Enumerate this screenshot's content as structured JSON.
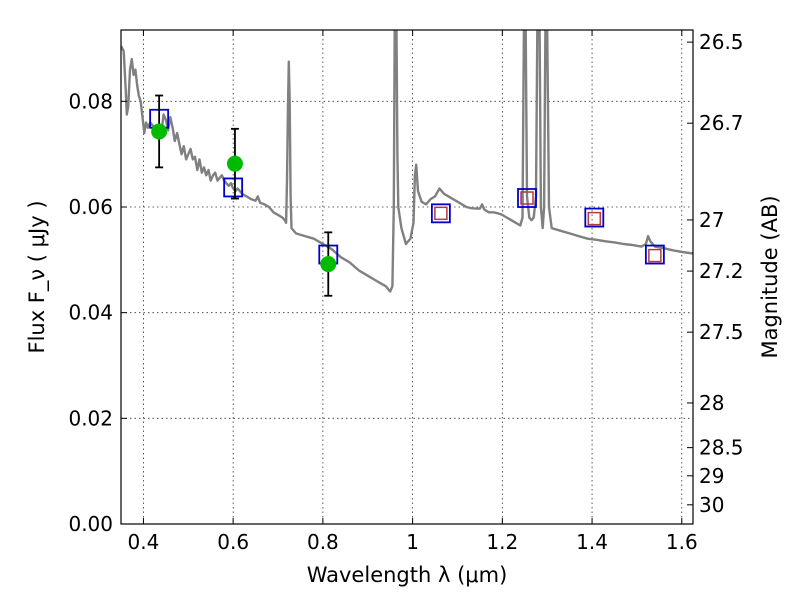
{
  "chart_data": {
    "type": "scatter",
    "xlabel": "Wavelength  λ (μm)",
    "ylabel": "Flux  F_ν  ( μJy )",
    "y2label": "Magnitude (AB)",
    "xlim": [
      0.35,
      1.625
    ],
    "ylim": [
      0.0,
      0.0935
    ],
    "grid": true,
    "xticks": [
      {
        "v": 0.4,
        "label": "0.4"
      },
      {
        "v": 0.6,
        "label": "0.6"
      },
      {
        "v": 0.8,
        "label": "0.8"
      },
      {
        "v": 1.0,
        "label": "1"
      },
      {
        "v": 1.2,
        "label": "1.2"
      },
      {
        "v": 1.4,
        "label": "1.4"
      },
      {
        "v": 1.6,
        "label": "1.6"
      }
    ],
    "yticks": [
      {
        "v": 0.0,
        "label": "0.00"
      },
      {
        "v": 0.02,
        "label": "0.02"
      },
      {
        "v": 0.04,
        "label": "0.04"
      },
      {
        "v": 0.06,
        "label": "0.06"
      },
      {
        "v": 0.08,
        "label": "0.08"
      }
    ],
    "magticks": [
      {
        "v": 26.5,
        "label": "26.5"
      },
      {
        "v": 26.7,
        "label": "26.7"
      },
      {
        "v": 27.0,
        "label": "27"
      },
      {
        "v": 27.2,
        "label": "27.2"
      },
      {
        "v": 27.5,
        "label": "27.5"
      },
      {
        "v": 28.0,
        "label": "28"
      },
      {
        "v": 28.5,
        "label": "28.5"
      },
      {
        "v": 29.0,
        "label": "29"
      },
      {
        "v": 30.0,
        "label": "30"
      }
    ],
    "series": [
      {
        "kind": "line",
        "color": "#808080",
        "points": [
          [
            0.35,
            0.0905
          ],
          [
            0.356,
            0.0895
          ],
          [
            0.36,
            0.083
          ],
          [
            0.363,
            0.0775
          ],
          [
            0.366,
            0.079
          ],
          [
            0.37,
            0.086
          ],
          [
            0.374,
            0.088
          ],
          [
            0.378,
            0.085
          ],
          [
            0.382,
            0.086
          ],
          [
            0.386,
            0.083
          ],
          [
            0.39,
            0.081
          ],
          [
            0.394,
            0.08
          ],
          [
            0.398,
            0.077
          ],
          [
            0.402,
            0.074
          ],
          [
            0.406,
            0.076
          ],
          [
            0.41,
            0.075
          ],
          [
            0.415,
            0.076
          ],
          [
            0.42,
            0.0755
          ],
          [
            0.425,
            0.075
          ],
          [
            0.43,
            0.0735
          ],
          [
            0.435,
            0.0755
          ],
          [
            0.44,
            0.074
          ],
          [
            0.445,
            0.0775
          ],
          [
            0.45,
            0.0765
          ],
          [
            0.455,
            0.0745
          ],
          [
            0.46,
            0.077
          ],
          [
            0.465,
            0.075
          ],
          [
            0.47,
            0.0725
          ],
          [
            0.475,
            0.074
          ],
          [
            0.48,
            0.072
          ],
          [
            0.485,
            0.07
          ],
          [
            0.49,
            0.0715
          ],
          [
            0.495,
            0.069
          ],
          [
            0.5,
            0.07
          ],
          [
            0.505,
            0.071
          ],
          [
            0.51,
            0.069
          ],
          [
            0.515,
            0.0695
          ],
          [
            0.52,
            0.067
          ],
          [
            0.525,
            0.069
          ],
          [
            0.53,
            0.0665
          ],
          [
            0.535,
            0.0675
          ],
          [
            0.54,
            0.066
          ],
          [
            0.545,
            0.067
          ],
          [
            0.55,
            0.065
          ],
          [
            0.555,
            0.066
          ],
          [
            0.56,
            0.0665
          ],
          [
            0.565,
            0.065
          ],
          [
            0.57,
            0.0655
          ],
          [
            0.575,
            0.066
          ],
          [
            0.58,
            0.065
          ],
          [
            0.585,
            0.0645
          ],
          [
            0.59,
            0.064
          ],
          [
            0.595,
            0.0645
          ],
          [
            0.6,
            0.0635
          ],
          [
            0.605,
            0.063
          ],
          [
            0.61,
            0.0635
          ],
          [
            0.615,
            0.063
          ],
          [
            0.62,
            0.0625
          ],
          [
            0.63,
            0.062
          ],
          [
            0.64,
            0.0615
          ],
          [
            0.65,
            0.0612
          ],
          [
            0.655,
            0.062
          ],
          [
            0.66,
            0.0608
          ],
          [
            0.67,
            0.0605
          ],
          [
            0.68,
            0.06
          ],
          [
            0.69,
            0.059
          ],
          [
            0.7,
            0.0585
          ],
          [
            0.71,
            0.058
          ],
          [
            0.715,
            0.0575
          ],
          [
            0.718,
            0.057
          ],
          [
            0.72,
            0.065
          ],
          [
            0.722,
            0.078
          ],
          [
            0.724,
            0.0875
          ],
          [
            0.726,
            0.08
          ],
          [
            0.728,
            0.062
          ],
          [
            0.73,
            0.056
          ],
          [
            0.74,
            0.055
          ],
          [
            0.76,
            0.0545
          ],
          [
            0.78,
            0.054
          ],
          [
            0.8,
            0.053
          ],
          [
            0.82,
            0.052
          ],
          [
            0.84,
            0.0505
          ],
          [
            0.86,
            0.0495
          ],
          [
            0.88,
            0.048
          ],
          [
            0.9,
            0.047
          ],
          [
            0.92,
            0.046
          ],
          [
            0.94,
            0.045
          ],
          [
            0.95,
            0.044
          ],
          [
            0.955,
            0.045
          ],
          [
            0.958,
            0.06
          ],
          [
            0.96,
            0.0935
          ],
          [
            0.962,
            0.0935
          ],
          [
            0.964,
            0.0935
          ],
          [
            0.966,
            0.07
          ],
          [
            0.968,
            0.06
          ],
          [
            0.975,
            0.056
          ],
          [
            0.985,
            0.053
          ],
          [
            0.995,
            0.054
          ],
          [
            1.002,
            0.057
          ],
          [
            1.005,
            0.066
          ],
          [
            1.008,
            0.068
          ],
          [
            1.012,
            0.063
          ],
          [
            1.02,
            0.061
          ],
          [
            1.03,
            0.0605
          ],
          [
            1.04,
            0.0615
          ],
          [
            1.05,
            0.062
          ],
          [
            1.06,
            0.0635
          ],
          [
            1.07,
            0.0625
          ],
          [
            1.08,
            0.062
          ],
          [
            1.09,
            0.0615
          ],
          [
            1.1,
            0.061
          ],
          [
            1.11,
            0.0605
          ],
          [
            1.12,
            0.06
          ],
          [
            1.13,
            0.0598
          ],
          [
            1.14,
            0.0597
          ],
          [
            1.15,
            0.0597
          ],
          [
            1.155,
            0.0605
          ],
          [
            1.16,
            0.0595
          ],
          [
            1.17,
            0.059
          ],
          [
            1.18,
            0.059
          ],
          [
            1.19,
            0.0588
          ],
          [
            1.2,
            0.0585
          ],
          [
            1.21,
            0.058
          ],
          [
            1.22,
            0.0575
          ],
          [
            1.23,
            0.057
          ],
          [
            1.24,
            0.0565
          ],
          [
            1.245,
            0.058
          ],
          [
            1.248,
            0.0935
          ],
          [
            1.252,
            0.0935
          ],
          [
            1.255,
            0.062
          ],
          [
            1.26,
            0.058
          ],
          [
            1.265,
            0.0575
          ],
          [
            1.27,
            0.058
          ],
          [
            1.275,
            0.062
          ],
          [
            1.278,
            0.0935
          ],
          [
            1.283,
            0.0935
          ],
          [
            1.286,
            0.06
          ],
          [
            1.29,
            0.056
          ],
          [
            1.293,
            0.06
          ],
          [
            1.296,
            0.0935
          ],
          [
            1.3,
            0.0935
          ],
          [
            1.304,
            0.06
          ],
          [
            1.31,
            0.056
          ],
          [
            1.33,
            0.0555
          ],
          [
            1.35,
            0.055
          ],
          [
            1.37,
            0.0545
          ],
          [
            1.39,
            0.054
          ],
          [
            1.41,
            0.0538
          ],
          [
            1.43,
            0.0535
          ],
          [
            1.45,
            0.0533
          ],
          [
            1.47,
            0.053
          ],
          [
            1.49,
            0.0528
          ],
          [
            1.51,
            0.0525
          ],
          [
            1.52,
            0.053
          ],
          [
            1.525,
            0.0545
          ],
          [
            1.53,
            0.0535
          ],
          [
            1.54,
            0.0525
          ],
          [
            1.56,
            0.0522
          ],
          [
            1.58,
            0.0518
          ],
          [
            1.6,
            0.0515
          ],
          [
            1.625,
            0.0512
          ]
        ]
      },
      {
        "kind": "square",
        "color": "#0000cc",
        "points": [
          [
            0.435,
            0.0767
          ],
          [
            0.6,
            0.0637
          ],
          [
            0.812,
            0.051
          ],
          [
            1.063,
            0.0588
          ],
          [
            1.255,
            0.0617
          ],
          [
            1.405,
            0.058
          ],
          [
            1.54,
            0.051
          ]
        ]
      },
      {
        "kind": "small-square",
        "color": "#b23b3b",
        "points": [
          [
            1.063,
            0.0588
          ],
          [
            1.255,
            0.0617
          ],
          [
            1.405,
            0.0578
          ],
          [
            1.54,
            0.0508
          ]
        ]
      },
      {
        "kind": "circle",
        "color": "#00bb00",
        "points": [
          [
            0.435,
            0.0743,
            0.0068
          ],
          [
            0.604,
            0.0682,
            0.0066
          ],
          [
            0.812,
            0.0492,
            0.006
          ]
        ]
      }
    ]
  }
}
